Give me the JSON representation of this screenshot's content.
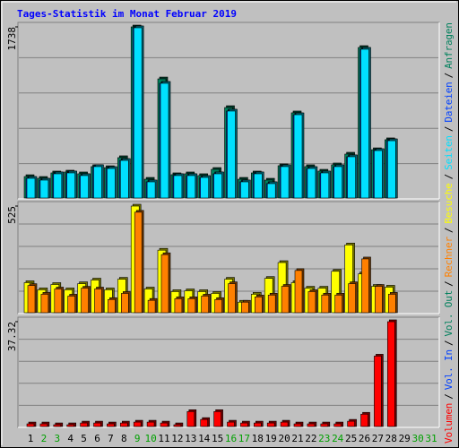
{
  "chart_data": {
    "type": "bar",
    "title": "Tages-Statistik im Monat Februar 2019",
    "categories": [
      "1",
      "2",
      "3",
      "4",
      "5",
      "6",
      "7",
      "8",
      "9",
      "10",
      "11",
      "12",
      "13",
      "14",
      "15",
      "16",
      "17",
      "18",
      "19",
      "20",
      "21",
      "22",
      "23",
      "24",
      "25",
      "26",
      "27",
      "28",
      "29",
      "30",
      "31"
    ],
    "highlight": [
      1,
      2,
      8,
      9,
      15,
      16,
      22,
      23,
      29,
      30
    ],
    "highlight_color": "#00a000",
    "legend_separator": "/",
    "panels": [
      {
        "ylim": [
          0,
          1738
        ],
        "yticks": [
          1738
        ],
        "series": [
          {
            "name": "Anfragen",
            "color": "#00805c",
            "values": [
              218,
              200,
              255,
              264,
              246,
              319,
              309,
              410,
              1738,
              191,
              1210,
              237,
              246,
              228,
              291,
              919,
              191,
              255,
              182,
              328,
              865,
              319,
              273,
              337,
              446,
              1529,
              491,
              592,
              null,
              null,
              null
            ]
          },
          {
            "name": "Dateien",
            "color": "#0040ff",
            "values": [
              200,
              182,
              246,
              255,
              228,
              319,
              300,
              382,
              1729,
              164,
              1165,
              228,
              228,
              209,
              246,
              883,
              164,
              246,
              146,
              319,
              846,
              300,
              255,
              319,
              419,
              1511,
              482,
              582,
              null,
              null,
              null
            ]
          },
          {
            "name": "Seiten",
            "color": "#00e0ff",
            "values": [
              200,
              182,
              246,
              255,
              228,
              319,
              300,
              382,
              1729,
              164,
              1165,
              228,
              228,
              209,
              246,
              883,
              164,
              246,
              146,
              319,
              846,
              300,
              255,
              319,
              419,
              1511,
              482,
              582,
              null,
              null,
              null
            ]
          }
        ]
      },
      {
        "ylim": [
          0,
          525
        ],
        "yticks": [
          525
        ],
        "series": [
          {
            "name": "Besuche",
            "color": "#ffff00",
            "values": [
              148,
              113,
              139,
              113,
              143,
              161,
              113,
              165,
              525,
              117,
              308,
              104,
              108,
              104,
              95,
              165,
              52,
              91,
              169,
              247,
              148,
              121,
              121,
              204,
              334,
              191,
              130,
              126,
              null,
              null,
              null
            ]
          },
          {
            "name": "Rechner",
            "color": "#ff8000",
            "values": [
              134,
              91,
              117,
              82,
              121,
              117,
              65,
              95,
              495,
              61,
              286,
              69,
              69,
              82,
              65,
              143,
              52,
              78,
              87,
              130,
              208,
              104,
              87,
              87,
              143,
              265,
              130,
              91,
              null,
              null,
              null
            ]
          }
        ]
      },
      {
        "ylim": [
          0,
          37.32
        ],
        "yticks": [
          37.32
        ],
        "series": [
          {
            "name": "Volumen",
            "color": "#ff0000",
            "values": [
              0.94,
              0.94,
              0.63,
              0.63,
              1.25,
              1.25,
              0.94,
              1.25,
              1.57,
              1.57,
              1.25,
              0.63,
              5.33,
              2.51,
              5.33,
              1.57,
              1.25,
              1.25,
              1.25,
              1.57,
              0.94,
              0.94,
              0.94,
              0.94,
              1.88,
              4.39,
              25.08,
              37.32,
              null,
              null,
              null
            ]
          }
        ],
        "legend_extra": [
          {
            "name": "Vol. In",
            "color": "#0040ff"
          },
          {
            "name": "Vol. Out",
            "color": "#00805c"
          }
        ]
      }
    ]
  }
}
